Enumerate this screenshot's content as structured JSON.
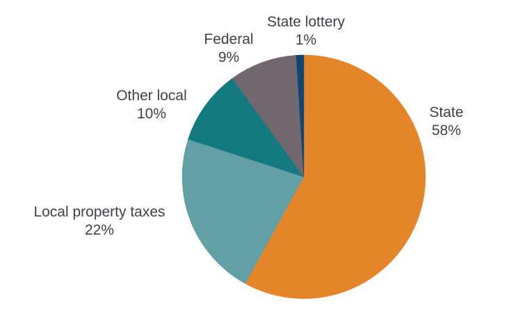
{
  "chart_data": {
    "type": "pie",
    "title": "",
    "slices": [
      {
        "name": "State",
        "value": 58,
        "label": "58%",
        "color": "#e5852a"
      },
      {
        "name": "Local property taxes",
        "value": 22,
        "label": "22%",
        "color": "#62a0a5"
      },
      {
        "name": "Other local",
        "value": 10,
        "label": "10%",
        "color": "#137a80"
      },
      {
        "name": "Federal",
        "value": 9,
        "label": "9%",
        "color": "#71686f"
      },
      {
        "name": "State lottery",
        "value": 1,
        "label": "1%",
        "color": "#0f4674"
      }
    ],
    "start_angle_deg": 0,
    "direction": "clockwise",
    "legend": "none"
  }
}
